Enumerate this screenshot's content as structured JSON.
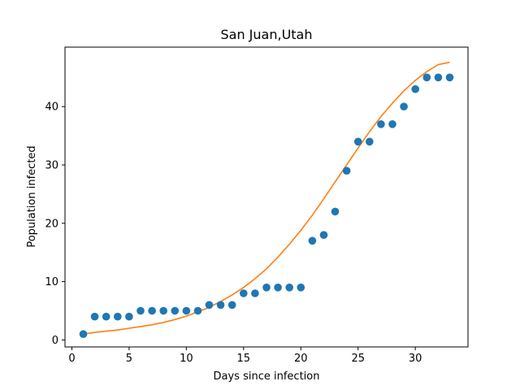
{
  "chart_data": {
    "type": "scatter",
    "title": "San Juan,Utah",
    "xlabel": "Days since infection",
    "ylabel": "Population infected",
    "xlim": [
      -0.6,
      34.6
    ],
    "ylim": [
      -1.2,
      50.2
    ],
    "xticks": [
      0,
      5,
      10,
      15,
      20,
      25,
      30
    ],
    "yticks": [
      0,
      10,
      20,
      30,
      40
    ],
    "grid": false,
    "series": [
      {
        "kind": "points",
        "color": "#1f77b4",
        "x": [
          1,
          2,
          3,
          4,
          5,
          6,
          7,
          8,
          9,
          10,
          11,
          12,
          13,
          14,
          15,
          16,
          17,
          18,
          19,
          20,
          21,
          22,
          23,
          24,
          25,
          26,
          27,
          28,
          29,
          30,
          31,
          32,
          33
        ],
        "y": [
          1,
          4,
          4,
          4,
          4,
          5,
          5,
          5,
          5,
          5,
          5,
          6,
          6,
          6,
          8,
          8,
          9,
          9,
          9,
          9,
          17,
          18,
          22,
          29,
          34,
          34,
          37,
          37,
          40,
          43,
          45,
          45,
          45
        ]
      },
      {
        "kind": "line",
        "color": "#ff7f0e",
        "x": [
          1,
          2,
          3,
          4,
          5,
          6,
          7,
          8,
          9,
          10,
          11,
          12,
          13,
          14,
          15,
          16,
          17,
          18,
          19,
          20,
          21,
          22,
          23,
          24,
          25,
          26,
          27,
          28,
          29,
          30,
          31,
          32,
          33
        ],
        "y": [
          1.0,
          1.3,
          1.5,
          1.7,
          2.0,
          2.3,
          2.6,
          3.0,
          3.5,
          4.1,
          4.8,
          5.6,
          6.6,
          7.7,
          9.0,
          10.5,
          12.2,
          14.2,
          16.4,
          18.8,
          21.4,
          24.2,
          27.1,
          30.0,
          32.9,
          35.7,
          38.3,
          40.6,
          42.7,
          44.5,
          46.0,
          47.2,
          47.6
        ]
      }
    ]
  }
}
